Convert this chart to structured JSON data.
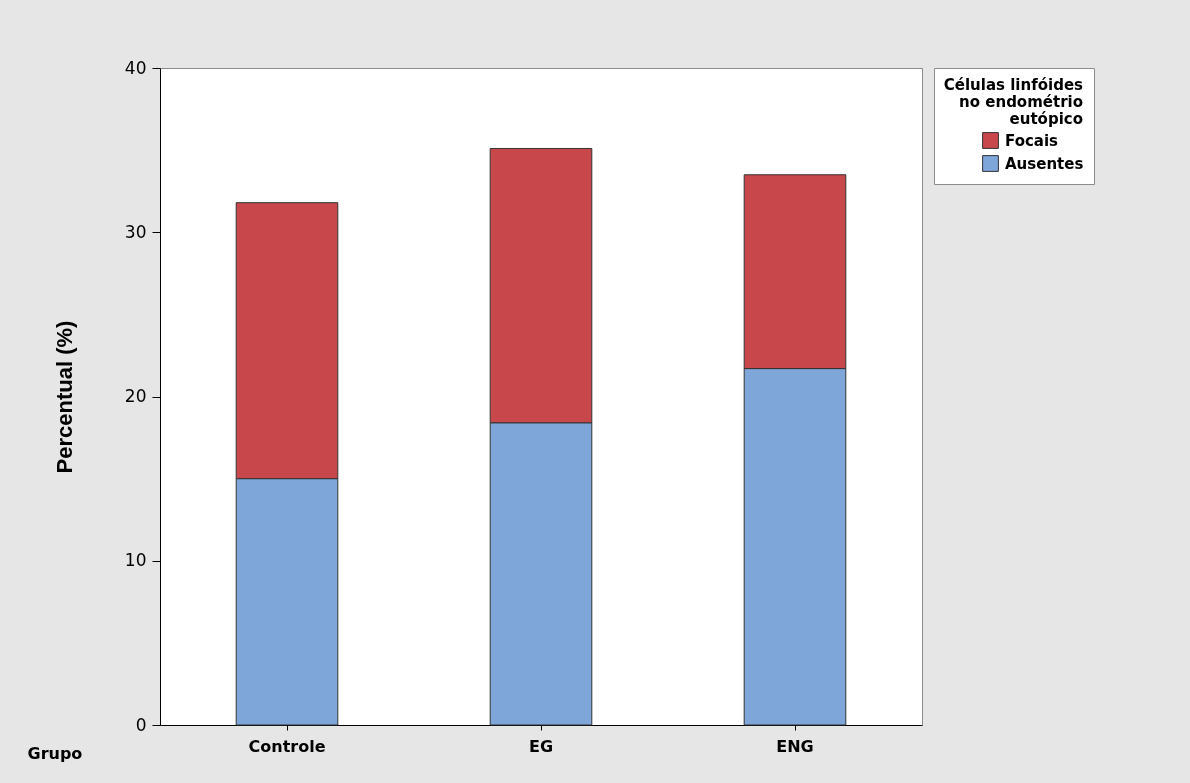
{
  "chart_data": {
    "type": "bar",
    "stacked": true,
    "categories": [
      "Controle",
      "EG",
      "ENG"
    ],
    "series": [
      {
        "name": "Ausentes",
        "color": "#7ea6d8",
        "values": [
          15.0,
          18.4,
          21.7
        ]
      },
      {
        "name": "Focais",
        "color": "#c8474a",
        "values": [
          16.8,
          16.7,
          11.8
        ]
      }
    ],
    "xlabel": "Grupo",
    "ylabel": "Percentual (%)",
    "legend_title": "Células linfóides no endométrio eutópico",
    "legend": "top right",
    "ylim": [
      0,
      40
    ],
    "yticks": [
      0,
      10,
      20,
      30,
      40
    ],
    "grid": false
  }
}
